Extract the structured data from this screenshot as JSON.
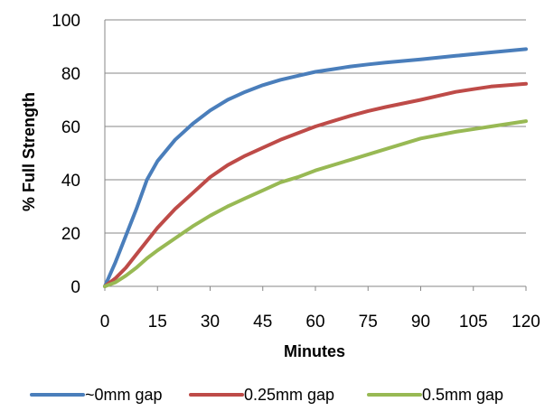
{
  "chart_data": {
    "type": "line",
    "title": "",
    "xlabel": "Minutes",
    "ylabel": "% Full Strength",
    "xlim": [
      0,
      120
    ],
    "ylim": [
      0,
      100
    ],
    "x_ticks": [
      "0",
      "15",
      "30",
      "45",
      "60",
      "75",
      "90",
      "105",
      "120"
    ],
    "y_ticks": [
      "0",
      "20",
      "40",
      "60",
      "80",
      "100"
    ],
    "grid": "horizontal",
    "legend_position": "bottom",
    "series": [
      {
        "name": "~0mm gap",
        "color": "#4a7ebb",
        "x": [
          0,
          3,
          6,
          9,
          12,
          15,
          20,
          25,
          30,
          35,
          40,
          45,
          50,
          55,
          60,
          65,
          70,
          75,
          80,
          90,
          100,
          110,
          120
        ],
        "y": [
          0,
          9,
          19,
          29,
          40,
          47,
          55,
          61,
          66,
          70,
          73,
          75.5,
          77.5,
          79,
          80.5,
          81.5,
          82.5,
          83.3,
          84,
          85.2,
          86.5,
          87.8,
          89
        ]
      },
      {
        "name": "0.25mm gap",
        "color": "#be4b48",
        "x": [
          0,
          3,
          6,
          9,
          12,
          15,
          20,
          25,
          30,
          35,
          40,
          45,
          50,
          55,
          60,
          65,
          70,
          75,
          80,
          90,
          100,
          105,
          110,
          120
        ],
        "y": [
          0,
          3,
          7,
          12,
          17,
          22,
          29,
          35,
          41,
          45.5,
          49,
          52,
          55,
          57.5,
          60,
          62,
          64,
          65.8,
          67.3,
          70,
          73,
          74,
          75,
          76
        ]
      },
      {
        "name": "0.5mm gap",
        "color": "#98b954",
        "x": [
          0,
          3,
          6,
          9,
          12,
          15,
          20,
          25,
          30,
          35,
          40,
          45,
          50,
          55,
          60,
          70,
          80,
          90,
          100,
          110,
          120
        ],
        "y": [
          0,
          1.5,
          4,
          7,
          10.5,
          13.5,
          18,
          22.5,
          26.5,
          30,
          33,
          36,
          39,
          41,
          43.5,
          47.5,
          51.5,
          55.5,
          58,
          60,
          62
        ]
      }
    ]
  }
}
